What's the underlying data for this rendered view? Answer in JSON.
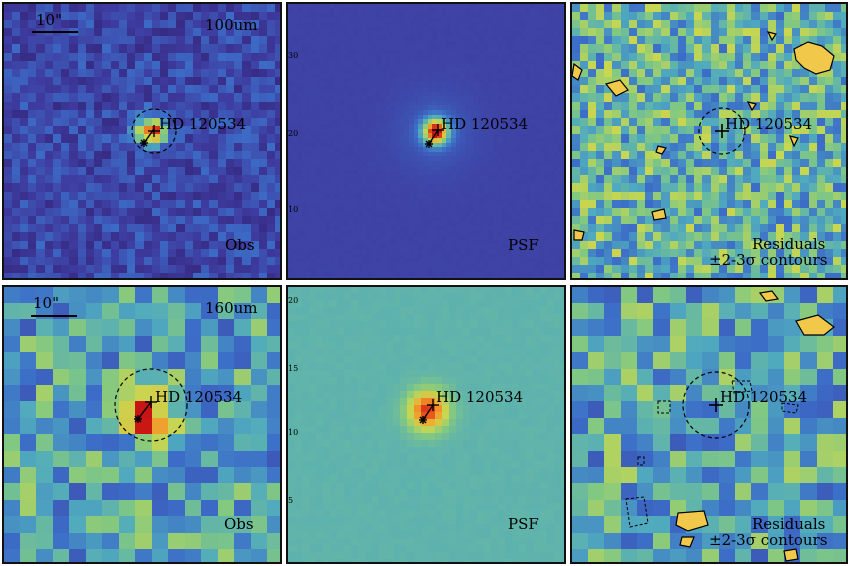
{
  "panels": [
    {
      "row": "100um",
      "col": "obs",
      "wavelength_label": "100um",
      "scale_label": "10\"",
      "target_label": "HD 120534",
      "corner_label": "Obs",
      "palette": "obs100",
      "ring": true
    },
    {
      "row": "100um",
      "col": "psf",
      "target_label": "HD 120534",
      "corner_label": "PSF",
      "palette": "psf100",
      "ring": false,
      "tick_labels": [
        "30",
        "20",
        "10"
      ]
    },
    {
      "row": "100um",
      "col": "residuals",
      "target_label": "HD 120534",
      "corner_label_line1": "Residuals",
      "corner_label_line2": "±2-3σ contours",
      "palette": "res100",
      "ring": true
    },
    {
      "row": "160um",
      "col": "obs",
      "wavelength_label": "160um",
      "scale_label": "10\"",
      "target_label": "HD 120534",
      "corner_label": "Obs",
      "palette": "obs160",
      "ring": true
    },
    {
      "row": "160um",
      "col": "psf",
      "target_label": "HD 120534",
      "corner_label": "PSF",
      "palette": "psf160",
      "ring": false,
      "tick_labels": [
        "20",
        "15",
        "10",
        "5"
      ]
    },
    {
      "row": "160um",
      "col": "residuals",
      "target_label": "HD 120534",
      "corner_label_line1": "Residuals",
      "corner_label_line2": "±2-3σ contours",
      "palette": "res160",
      "ring": true
    }
  ],
  "colors": {
    "frame": "#111111",
    "marker": "#000000",
    "contour_fill": "#f2c84b"
  }
}
